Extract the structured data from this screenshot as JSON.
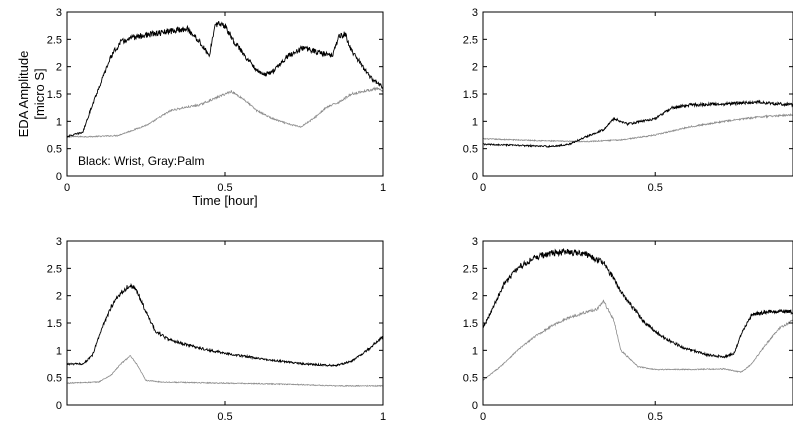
{
  "figure": {
    "ylabel_lines": [
      "EDA Amplitude",
      "[micro S]"
    ],
    "xlabel": "Time [hour]",
    "annotation": "Black: Wrist, Gray:Palm",
    "colors": {
      "wrist": "#000000",
      "palm": "#8c8c8c"
    }
  },
  "chart_data": [
    {
      "type": "line",
      "panel": "top-left",
      "xlim": [
        0,
        1
      ],
      "ylim": [
        0,
        3
      ],
      "xticks": [
        0,
        0.5,
        1
      ],
      "xtick_labels": [
        "0",
        "0.5",
        "1"
      ],
      "yticks": [
        0,
        0.5,
        1,
        1.5,
        2,
        2.5,
        3
      ],
      "ytick_labels": [
        "0",
        "0.5",
        "1",
        "1.5",
        "2",
        "2.5",
        "3"
      ],
      "grid": false,
      "series": [
        {
          "name": "Wrist",
          "color": "#000000",
          "x": [
            0,
            0.05,
            0.08,
            0.11,
            0.14,
            0.17,
            0.22,
            0.28,
            0.33,
            0.38,
            0.42,
            0.45,
            0.46,
            0.47,
            0.48,
            0.5,
            0.53,
            0.57,
            0.6,
            0.62,
            0.65,
            0.7,
            0.75,
            0.8,
            0.84,
            0.86,
            0.88,
            0.9,
            0.93,
            0.96,
            1.0
          ],
          "y": [
            0.72,
            0.8,
            1.3,
            1.75,
            2.2,
            2.45,
            2.55,
            2.6,
            2.65,
            2.7,
            2.45,
            2.2,
            2.5,
            2.75,
            2.8,
            2.75,
            2.45,
            2.15,
            1.95,
            1.85,
            1.9,
            2.2,
            2.35,
            2.25,
            2.2,
            2.55,
            2.6,
            2.3,
            2.05,
            1.8,
            1.62
          ]
        },
        {
          "name": "Palm",
          "color": "#8c8c8c",
          "x": [
            0,
            0.08,
            0.16,
            0.2,
            0.26,
            0.3,
            0.33,
            0.37,
            0.42,
            0.46,
            0.5,
            0.52,
            0.56,
            0.6,
            0.65,
            0.7,
            0.74,
            0.78,
            0.82,
            0.86,
            0.9,
            0.94,
            0.98,
            1.0
          ],
          "y": [
            0.72,
            0.72,
            0.74,
            0.82,
            0.95,
            1.1,
            1.2,
            1.25,
            1.3,
            1.4,
            1.5,
            1.55,
            1.4,
            1.2,
            1.05,
            0.95,
            0.9,
            1.05,
            1.25,
            1.35,
            1.5,
            1.55,
            1.6,
            1.55
          ]
        }
      ]
    },
    {
      "type": "line",
      "panel": "top-right",
      "xlim": [
        0,
        0.9
      ],
      "ylim": [
        0,
        3
      ],
      "xticks": [
        0,
        0.5
      ],
      "xtick_labels": [
        "0",
        "0.5"
      ],
      "yticks": [
        0,
        0.5,
        1,
        1.5,
        2,
        2.5,
        3
      ],
      "ytick_labels": [
        "0",
        "0.5",
        "1",
        "1.5",
        "2",
        "2.5",
        "3"
      ],
      "grid": false,
      "series": [
        {
          "name": "Wrist",
          "color": "#000000",
          "x": [
            0,
            0.1,
            0.2,
            0.25,
            0.3,
            0.35,
            0.38,
            0.42,
            0.46,
            0.5,
            0.55,
            0.6,
            0.7,
            0.8,
            0.9
          ],
          "y": [
            0.58,
            0.56,
            0.54,
            0.58,
            0.72,
            0.85,
            1.05,
            0.95,
            1.0,
            1.05,
            1.25,
            1.3,
            1.32,
            1.35,
            1.3
          ]
        },
        {
          "name": "Palm",
          "color": "#8c8c8c",
          "x": [
            0,
            0.1,
            0.2,
            0.3,
            0.4,
            0.5,
            0.6,
            0.7,
            0.8,
            0.9
          ],
          "y": [
            0.68,
            0.66,
            0.64,
            0.63,
            0.66,
            0.75,
            0.9,
            1.0,
            1.08,
            1.12
          ]
        }
      ]
    },
    {
      "type": "line",
      "panel": "bottom-left",
      "xlim": [
        0,
        1
      ],
      "ylim": [
        0,
        3
      ],
      "xticks": [
        0.5,
        1
      ],
      "xtick_labels": [
        "0.5",
        "1"
      ],
      "yticks": [
        0,
        0.5,
        1,
        1.5,
        2,
        2.5,
        3
      ],
      "ytick_labels": [
        "0",
        "0.5",
        "1",
        "1.5",
        "2",
        "2.5",
        "3"
      ],
      "grid": false,
      "series": [
        {
          "name": "Wrist",
          "color": "#000000",
          "x": [
            0,
            0.05,
            0.08,
            0.11,
            0.14,
            0.17,
            0.2,
            0.22,
            0.25,
            0.28,
            0.32,
            0.38,
            0.45,
            0.55,
            0.65,
            0.75,
            0.85,
            0.9,
            0.95,
            1.0
          ],
          "y": [
            0.75,
            0.75,
            0.9,
            1.4,
            1.8,
            2.05,
            2.2,
            2.1,
            1.7,
            1.35,
            1.2,
            1.1,
            1.0,
            0.9,
            0.82,
            0.75,
            0.72,
            0.8,
            1.0,
            1.25
          ]
        },
        {
          "name": "Palm",
          "color": "#8c8c8c",
          "x": [
            0,
            0.1,
            0.14,
            0.17,
            0.2,
            0.22,
            0.25,
            0.3,
            0.5,
            0.7,
            0.85,
            1.0
          ],
          "y": [
            0.4,
            0.42,
            0.55,
            0.75,
            0.9,
            0.75,
            0.45,
            0.42,
            0.4,
            0.38,
            0.35,
            0.35
          ]
        }
      ]
    },
    {
      "type": "line",
      "panel": "bottom-right",
      "xlim": [
        0,
        0.9
      ],
      "ylim": [
        0,
        3
      ],
      "xticks": [
        0,
        0.5
      ],
      "xtick_labels": [
        "0",
        "0.5"
      ],
      "yticks": [
        0,
        0.5,
        1,
        1.5,
        2,
        2.5,
        3
      ],
      "ytick_labels": [
        "0",
        "0.5",
        "1",
        "1.5",
        "2",
        "2.5",
        "3"
      ],
      "grid": false,
      "series": [
        {
          "name": "Wrist",
          "color": "#000000",
          "x": [
            0,
            0.03,
            0.06,
            0.1,
            0.15,
            0.2,
            0.25,
            0.3,
            0.35,
            0.38,
            0.42,
            0.47,
            0.52,
            0.58,
            0.65,
            0.7,
            0.73,
            0.75,
            0.78,
            0.82,
            0.86,
            0.9
          ],
          "y": [
            1.4,
            1.8,
            2.2,
            2.5,
            2.7,
            2.78,
            2.8,
            2.75,
            2.6,
            2.3,
            1.9,
            1.5,
            1.25,
            1.05,
            0.92,
            0.88,
            0.95,
            1.3,
            1.65,
            1.7,
            1.72,
            1.7
          ]
        },
        {
          "name": "Palm",
          "color": "#8c8c8c",
          "x": [
            0,
            0.05,
            0.1,
            0.15,
            0.2,
            0.25,
            0.3,
            0.33,
            0.35,
            0.38,
            0.4,
            0.45,
            0.5,
            0.6,
            0.7,
            0.75,
            0.78,
            0.82,
            0.86,
            0.9
          ],
          "y": [
            0.45,
            0.7,
            1.0,
            1.25,
            1.45,
            1.6,
            1.7,
            1.75,
            1.9,
            1.55,
            1.0,
            0.7,
            0.65,
            0.65,
            0.66,
            0.6,
            0.75,
            1.1,
            1.4,
            1.55
          ]
        }
      ]
    }
  ]
}
